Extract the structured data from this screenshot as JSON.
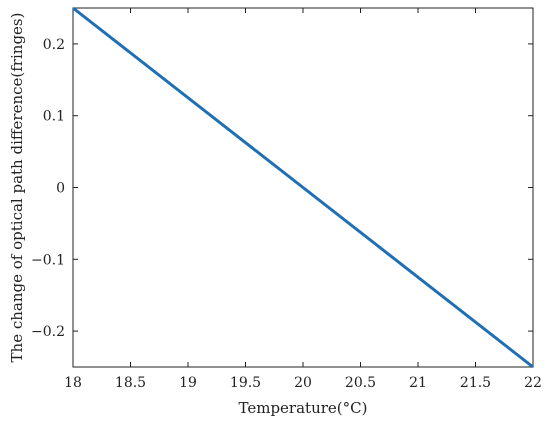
{
  "chart_data": {
    "type": "line",
    "title": "",
    "xlabel": "Temperature(°C)",
    "ylabel": "The change of optical path difference(fringes)",
    "xlim": [
      18,
      22
    ],
    "ylim": [
      -0.25,
      0.25
    ],
    "grid": false,
    "x_ticks": [
      18,
      18.5,
      19,
      19.5,
      20,
      20.5,
      21,
      21.5,
      22
    ],
    "x_tick_labels": [
      "18",
      "18.5",
      "19",
      "19.5",
      "20",
      "20.5",
      "21",
      "21.5",
      "22"
    ],
    "y_ticks": [
      0.2,
      0.1,
      0,
      -0.1,
      -0.2
    ],
    "y_tick_labels": [
      "0.2",
      "0.1",
      "0",
      "−0.1",
      "−0.2"
    ],
    "series": [
      {
        "color": "#1f6fb4",
        "x": [
          18,
          22
        ],
        "y": [
          0.25,
          -0.25
        ]
      }
    ]
  }
}
